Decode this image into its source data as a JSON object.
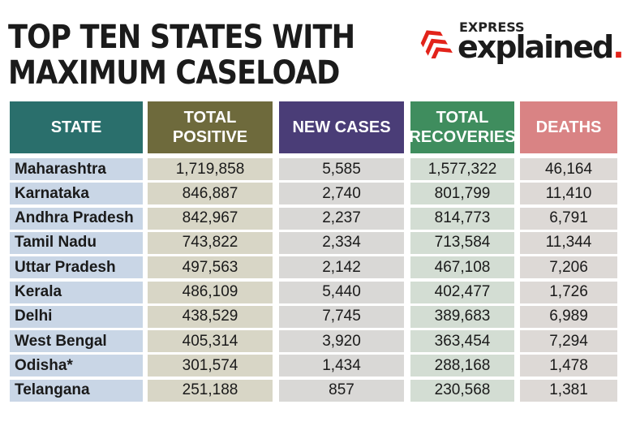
{
  "title": {
    "line1": "TOP TEN STATES WITH",
    "line2": "MAXIMUM CASELOAD"
  },
  "logo": {
    "top": "EXPRESS",
    "word": "explained",
    "dot": "."
  },
  "colors": {
    "state_header": "#2a6f6c",
    "total_positive_header": "#6e6a3c",
    "new_cases_header": "#4a3d77",
    "total_recoveries_header": "#3f8d5e",
    "deaths_header": "#d98384",
    "state_cell": "#c9d6e6",
    "total_positive_cell": "#d8d6c6",
    "new_cases_cell": "#d9d8d6",
    "total_recoveries_cell": "#d3ddd3",
    "deaths_cell": "#ddd9d6",
    "logo_red": "#e2231a"
  },
  "chart_data": {
    "type": "table",
    "title": "TOP TEN STATES WITH MAXIMUM CASELOAD",
    "columns": [
      "STATE",
      "TOTAL POSITIVE",
      "NEW CASES",
      "TOTAL RECOVERIES",
      "DEATHS"
    ],
    "header_lines": [
      [
        "STATE"
      ],
      [
        "TOTAL",
        "POSITIVE"
      ],
      [
        "NEW CASES"
      ],
      [
        "TOTAL",
        "RECOVERIES"
      ],
      [
        "DEATHS"
      ]
    ],
    "rows": [
      [
        "Maharashtra",
        "1,719,858",
        "5,585",
        "1,577,322",
        "46,164"
      ],
      [
        "Karnataka",
        "846,887",
        "2,740",
        "801,799",
        "11,410"
      ],
      [
        "Andhra Pradesh",
        "842,967",
        "2,237",
        "814,773",
        "6,791"
      ],
      [
        "Tamil Nadu",
        "743,822",
        "2,334",
        "713,584",
        "11,344"
      ],
      [
        "Uttar Pradesh",
        "497,563",
        "2,142",
        "467,108",
        "7,206"
      ],
      [
        "Kerala",
        "486,109",
        "5,440",
        "402,477",
        "1,726"
      ],
      [
        "Delhi",
        "438,529",
        "7,745",
        "389,683",
        "6,989"
      ],
      [
        "West Bengal",
        "405,314",
        "3,920",
        "363,454",
        "7,294"
      ],
      [
        "Odisha*",
        "301,574",
        "1,434",
        "288,168",
        "1,478"
      ],
      [
        "Telangana",
        "251,188",
        "857",
        "230,568",
        "1,381"
      ]
    ]
  }
}
